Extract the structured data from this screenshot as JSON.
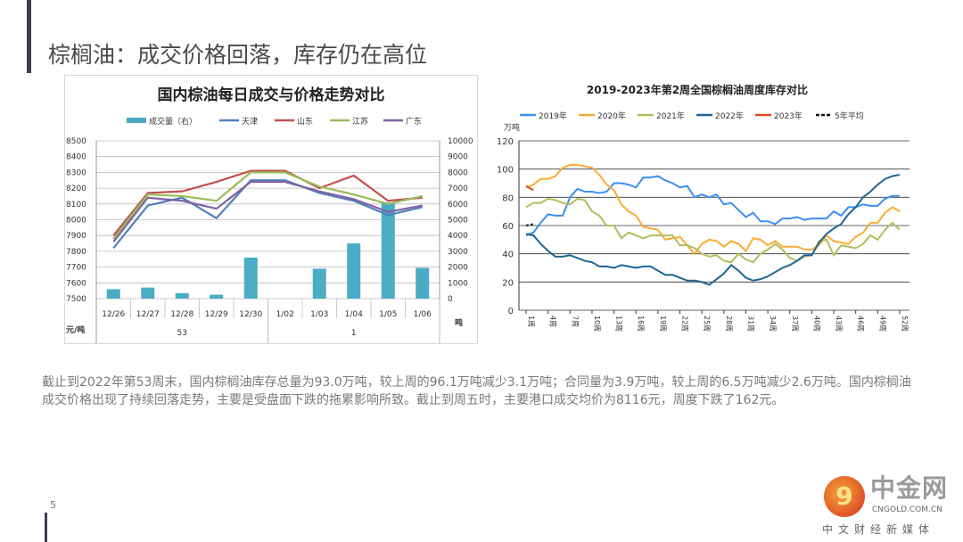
{
  "slide": {
    "title": "棕榈油：成交价格回落，库存仍在高位",
    "paragraph": "截止到2022年第53周末，国内棕榈油库存总量为93.0万吨，较上周的96.1万吨减少3.1万吨；合同量为3.9万吨，较上周的6.5万吨减少2.6万吨。国内棕榈油成交价格出现了持续回落走势，主要是受盘面下跌的拖累影响所致。截止到周五时，主要港口成交均价为8116元，周度下跌了162元。",
    "page_number": "5",
    "logo": {
      "mark": "9",
      "name": "中金网",
      "url": "CNGOLD.COM.CN",
      "tagline": "中文财经新媒体"
    }
  },
  "chart_data": [
    {
      "type": "bar+line",
      "title": "国内棕油每日成交与价格走势对比",
      "categories": [
        "12/26",
        "12/27",
        "12/28",
        "12/29",
        "12/30",
        "1/02",
        "1/03",
        "1/04",
        "1/05",
        "1/06"
      ],
      "category_groups": [
        {
          "label": "53",
          "count": 5
        },
        {
          "label": "1",
          "count": 5
        }
      ],
      "ylabel": "元/吨",
      "y2label": "吨",
      "ylim": [
        7500,
        8500
      ],
      "yticks": [
        7500,
        7600,
        7700,
        7800,
        7900,
        8000,
        8100,
        8200,
        8300,
        8400,
        8500
      ],
      "y2lim": [
        0,
        10000
      ],
      "y2ticks": [
        0,
        1000,
        2000,
        3000,
        4000,
        5000,
        6000,
        7000,
        8000,
        9000,
        10000
      ],
      "grid": true,
      "legend": "top",
      "bars": {
        "name": "成交量（右）",
        "color": "#4bacc6",
        "values": [
          600,
          700,
          350,
          250,
          2600,
          0,
          1900,
          3500,
          6100,
          1950
        ]
      },
      "series": [
        {
          "name": "天津",
          "color": "#4f81bd",
          "values": [
            7820,
            8090,
            8140,
            8010,
            8250,
            8250,
            8170,
            8120,
            8030,
            8080
          ]
        },
        {
          "name": "山东",
          "color": "#c0504d",
          "values": [
            7900,
            8170,
            8180,
            8240,
            8310,
            8310,
            8200,
            8280,
            8120,
            8140
          ]
        },
        {
          "name": "江苏",
          "color": "#9bbb59",
          "values": [
            7880,
            8160,
            8150,
            8120,
            8300,
            8300,
            8210,
            8160,
            8100,
            8150
          ]
        },
        {
          "name": "广东",
          "color": "#8064a2",
          "values": [
            7860,
            8140,
            8120,
            8070,
            8240,
            8240,
            8180,
            8130,
            8050,
            8090
          ]
        }
      ]
    },
    {
      "type": "line",
      "title": "2019-2023年第2周全国棕榈油周度库存对比",
      "ylabel": "万吨",
      "ylim": [
        0,
        120
      ],
      "yticks": [
        0,
        20,
        40,
        60,
        80,
        100,
        120
      ],
      "xticks": [
        "1周",
        "4周",
        "7周",
        "10周",
        "13周",
        "16周",
        "19周",
        "22周",
        "25周",
        "28周",
        "31周",
        "34周",
        "37周",
        "40周",
        "43周",
        "46周",
        "49周",
        "52周"
      ],
      "xtick_weeks": [
        1,
        4,
        7,
        10,
        13,
        16,
        19,
        22,
        25,
        28,
        31,
        34,
        37,
        40,
        43,
        46,
        49,
        52
      ],
      "grid": true,
      "legend": "top",
      "series": [
        {
          "name": "2019年",
          "color": "#3d8ff0",
          "values": [
            53,
            55,
            62,
            68,
            67,
            67,
            80,
            86,
            84,
            84,
            83,
            84,
            90,
            90,
            89,
            87,
            94,
            94,
            95,
            92,
            90,
            87,
            88,
            80,
            82,
            80,
            82,
            75,
            76,
            71,
            66,
            69,
            63,
            63,
            61,
            65,
            65,
            66,
            64,
            65,
            65,
            65,
            70,
            67,
            73,
            73,
            75,
            74,
            74,
            79,
            81,
            81
          ]
        },
        {
          "name": "2020年",
          "color": "#fbab35",
          "values": [
            87,
            89,
            93,
            93,
            95,
            101,
            103,
            103,
            102,
            101,
            96,
            89,
            85,
            75,
            70,
            67,
            59,
            58,
            57,
            50,
            51,
            52,
            46,
            40,
            47,
            50,
            49,
            45,
            49,
            47,
            42,
            51,
            50,
            46,
            49,
            45,
            45,
            45,
            43,
            43,
            46,
            53,
            49,
            48,
            47,
            52,
            55,
            62,
            62,
            69,
            73,
            70
          ]
        },
        {
          "name": "2021年",
          "color": "#b5bd5e",
          "values": [
            73,
            76,
            76,
            79,
            78,
            76,
            75,
            79,
            78,
            70,
            67,
            60,
            60,
            51,
            55,
            53,
            51,
            53,
            53,
            53,
            53,
            46,
            46,
            44,
            40,
            38,
            39,
            35,
            34,
            40,
            36,
            34,
            40,
            43,
            47,
            43,
            37,
            35,
            38,
            39,
            49,
            50,
            39,
            46,
            45,
            44,
            47,
            53,
            50,
            57,
            62,
            57
          ]
        },
        {
          "name": "2022年",
          "color": "#1d6594",
          "values": [
            54,
            53,
            47,
            42,
            38,
            38,
            39,
            37,
            35,
            34,
            31,
            31,
            30,
            32,
            31,
            30,
            31,
            31,
            28,
            25,
            25,
            23,
            21,
            21,
            20,
            18,
            22,
            26,
            32,
            28,
            23,
            21,
            22,
            24,
            27,
            30,
            32,
            35,
            39,
            39,
            48,
            54,
            58,
            61,
            68,
            73,
            80,
            84,
            89,
            93,
            95,
            96
          ]
        },
        {
          "name": "2023年",
          "color": "#e4471f",
          "values": [
            88,
            85
          ]
        },
        {
          "name": "5年平均",
          "color": "#111111",
          "dashed": true,
          "values": [
            60,
            61
          ]
        }
      ]
    }
  ]
}
